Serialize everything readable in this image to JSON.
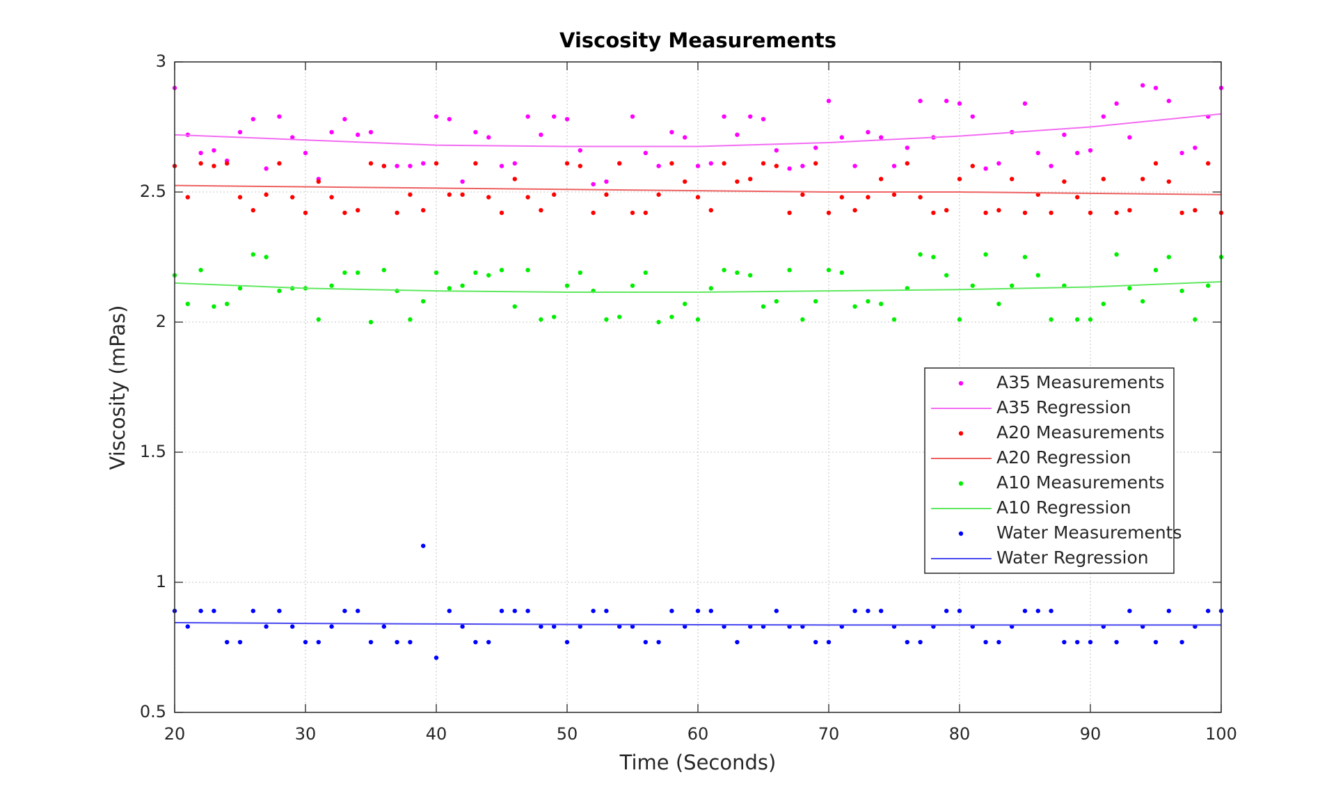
{
  "chart_data": {
    "type": "scatter",
    "title": "Viscosity Measurements",
    "xlabel": "Time (Seconds)",
    "ylabel": "Viscosity (mPas)",
    "xlim": [
      20,
      100
    ],
    "ylim": [
      0.5,
      3
    ],
    "xticks": [
      20,
      30,
      40,
      50,
      60,
      70,
      80,
      90,
      100
    ],
    "yticks": [
      0.5,
      1,
      1.5,
      2,
      2.5,
      3
    ],
    "grid": true,
    "legend": "east",
    "x": [
      20,
      21,
      22,
      23,
      24,
      25,
      26,
      27,
      28,
      29,
      30,
      31,
      32,
      33,
      34,
      35,
      36,
      37,
      38,
      39,
      40,
      41,
      42,
      43,
      44,
      45,
      46,
      47,
      48,
      49,
      50,
      51,
      52,
      53,
      54,
      55,
      56,
      57,
      58,
      59,
      60,
      61,
      62,
      63,
      64,
      65,
      66,
      67,
      68,
      69,
      70,
      71,
      72,
      73,
      74,
      75,
      76,
      77,
      78,
      79,
      80,
      81,
      82,
      83,
      84,
      85,
      86,
      87,
      88,
      89,
      90,
      91,
      92,
      93,
      94,
      95,
      96,
      97,
      98,
      99,
      100
    ],
    "series": [
      {
        "name": "A35 Measurements",
        "mode": "markers",
        "color": "#ff00ff",
        "values": [
          2.9,
          2.72,
          2.65,
          2.66,
          2.62,
          2.73,
          2.78,
          2.59,
          2.79,
          2.71,
          2.65,
          2.55,
          2.73,
          2.78,
          2.72,
          2.73,
          2.6,
          2.6,
          2.6,
          2.61,
          2.79,
          2.78,
          2.54,
          2.73,
          2.71,
          2.6,
          2.61,
          2.79,
          2.72,
          2.79,
          2.78,
          2.66,
          2.53,
          2.54,
          2.61,
          2.79,
          2.65,
          2.6,
          2.73,
          2.71,
          2.6,
          2.61,
          2.79,
          2.72,
          2.79,
          2.78,
          2.66,
          2.59,
          2.6,
          2.67,
          2.85,
          2.71,
          2.6,
          2.73,
          2.71,
          2.6,
          2.67,
          2.85,
          2.71,
          2.85,
          2.84,
          2.79,
          2.59,
          2.61,
          2.73,
          2.84,
          2.65,
          2.6,
          2.72,
          2.65,
          2.66,
          2.79,
          2.84,
          2.71,
          2.91,
          2.9,
          2.85,
          2.65,
          2.67,
          2.79,
          2.9
        ]
      },
      {
        "name": "A35 Regression",
        "mode": "line",
        "color": "#f26bf2",
        "x": [
          20,
          30,
          40,
          50,
          60,
          70,
          80,
          90,
          100
        ],
        "values": [
          2.72,
          2.7,
          2.68,
          2.675,
          2.675,
          2.69,
          2.715,
          2.75,
          2.8
        ]
      },
      {
        "name": "A20 Measurements",
        "mode": "markers",
        "color": "#ff0000",
        "values": [
          2.6,
          2.48,
          2.61,
          2.6,
          2.61,
          2.48,
          2.43,
          2.49,
          2.61,
          2.48,
          2.42,
          2.54,
          2.48,
          2.42,
          2.43,
          2.61,
          2.6,
          2.42,
          2.49,
          2.43,
          2.61,
          2.49,
          2.49,
          2.61,
          2.48,
          2.42,
          2.55,
          2.48,
          2.43,
          2.49,
          2.61,
          2.6,
          2.42,
          2.49,
          2.61,
          2.42,
          2.42,
          2.49,
          2.61,
          2.54,
          2.48,
          2.43,
          2.61,
          2.54,
          2.55,
          2.61,
          2.6,
          2.42,
          2.49,
          2.61,
          2.42,
          2.48,
          2.43,
          2.48,
          2.55,
          2.49,
          2.61,
          2.48,
          2.42,
          2.43,
          2.55,
          2.6,
          2.42,
          2.43,
          2.55,
          2.42,
          2.49,
          2.42,
          2.54,
          2.48,
          2.42,
          2.55,
          2.42,
          2.43,
          2.55,
          2.61,
          2.54,
          2.42,
          2.43,
          2.61,
          2.42
        ]
      },
      {
        "name": "A20 Regression",
        "mode": "line",
        "color": "#ee6060",
        "x": [
          20,
          30,
          40,
          50,
          60,
          70,
          80,
          90,
          100
        ],
        "values": [
          2.525,
          2.52,
          2.515,
          2.51,
          2.505,
          2.5,
          2.5,
          2.495,
          2.49
        ]
      },
      {
        "name": "A10 Measurements",
        "mode": "markers",
        "color": "#00ee00",
        "values": [
          2.18,
          2.07,
          2.2,
          2.06,
          2.07,
          2.13,
          2.26,
          2.25,
          2.12,
          2.13,
          2.13,
          2.01,
          2.14,
          2.19,
          2.19,
          2.0,
          2.2,
          2.12,
          2.01,
          2.08,
          2.19,
          2.13,
          2.14,
          2.19,
          2.18,
          2.2,
          2.06,
          2.2,
          2.01,
          2.02,
          2.14,
          2.19,
          2.12,
          2.01,
          2.02,
          2.14,
          2.19,
          2.0,
          2.02,
          2.07,
          2.01,
          2.13,
          2.2,
          2.19,
          2.18,
          2.06,
          2.08,
          2.2,
          2.01,
          2.08,
          2.2,
          2.19,
          2.06,
          2.08,
          2.07,
          2.01,
          2.13,
          2.26,
          2.25,
          2.18,
          2.01,
          2.14,
          2.26,
          2.07,
          2.14,
          2.25,
          2.18,
          2.01,
          2.14,
          2.01,
          2.01,
          2.07,
          2.26,
          2.13,
          2.08,
          2.2,
          2.25,
          2.12,
          2.01,
          2.14,
          2.25
        ]
      },
      {
        "name": "A10 Regression",
        "mode": "line",
        "color": "#5ee85e",
        "x": [
          20,
          30,
          40,
          50,
          60,
          70,
          80,
          90,
          100
        ],
        "values": [
          2.15,
          2.13,
          2.12,
          2.115,
          2.115,
          2.12,
          2.125,
          2.135,
          2.155
        ]
      },
      {
        "name": "Water Measurements",
        "mode": "markers",
        "color": "#0000ff",
        "values": [
          0.89,
          0.83,
          0.89,
          0.89,
          0.77,
          0.77,
          0.89,
          0.83,
          0.89,
          0.83,
          0.77,
          0.77,
          0.83,
          0.89,
          0.89,
          0.77,
          0.83,
          0.77,
          0.77,
          1.14,
          0.71,
          0.89,
          0.83,
          0.77,
          0.77,
          0.89,
          0.89,
          0.89,
          0.83,
          0.83,
          0.77,
          0.83,
          0.89,
          0.89,
          0.83,
          0.83,
          0.77,
          0.77,
          0.89,
          0.83,
          0.89,
          0.89,
          0.83,
          0.77,
          0.83,
          0.83,
          0.89,
          0.83,
          0.83,
          0.77,
          0.77,
          0.83,
          0.89,
          0.89,
          0.89,
          0.83,
          0.77,
          0.77,
          0.83,
          0.89,
          0.89,
          0.83,
          0.77,
          0.77,
          0.83,
          0.89,
          0.89,
          0.89,
          0.77,
          0.77,
          0.77,
          0.83,
          0.77,
          0.89,
          0.83,
          0.77,
          0.89,
          0.77,
          0.83,
          0.89,
          0.89
        ]
      },
      {
        "name": "Water Regression",
        "mode": "line",
        "color": "#4646f0",
        "x": [
          20,
          30,
          40,
          50,
          60,
          70,
          80,
          90,
          100
        ],
        "values": [
          0.845,
          0.842,
          0.84,
          0.838,
          0.837,
          0.836,
          0.836,
          0.836,
          0.836
        ]
      }
    ]
  }
}
